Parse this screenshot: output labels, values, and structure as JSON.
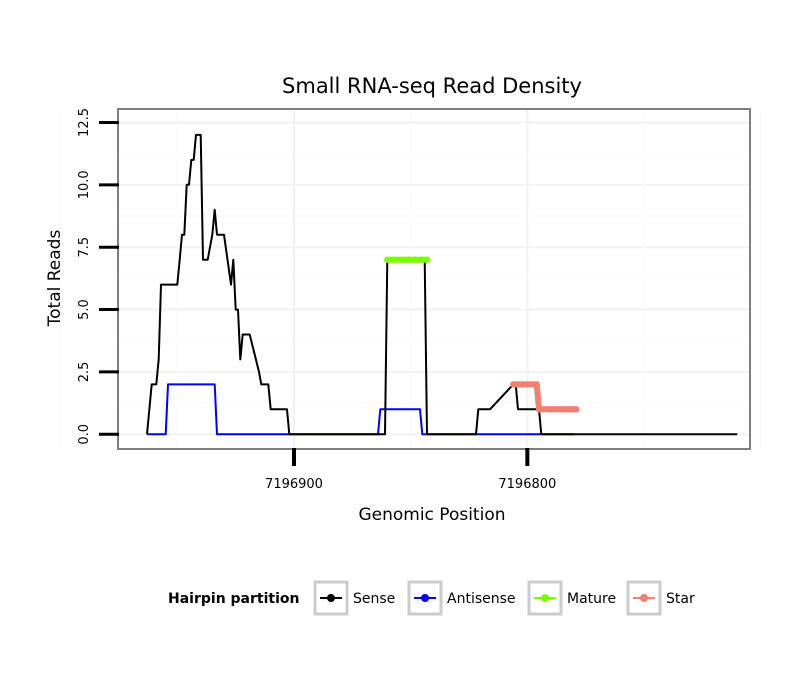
{
  "chart_data": {
    "type": "line",
    "title": "Small RNA-seq Read Density",
    "xlabel": "Genomic Position",
    "ylabel": "Total Reads",
    "x_reversed": true,
    "xlim": [
      7196975,
      7196705
    ],
    "ylim": [
      -0.55,
      13.0
    ],
    "x_ticks": [
      7196900,
      7196800
    ],
    "x_tick_labels": [
      "7196900",
      "7196800"
    ],
    "y_ticks": [
      0,
      2.5,
      5,
      7.5,
      10,
      12.5
    ],
    "y_tick_labels": [
      "0.0",
      "2.5",
      "5.0",
      "7.5",
      "10.0",
      "12.5"
    ],
    "grid": true,
    "legend_title": "Hairpin partition",
    "legend_position": "bottom",
    "series": [
      {
        "name": "Sense",
        "color": "#000000",
        "x": [
          7196963,
          7196961,
          7196959,
          7196958,
          7196957,
          7196956,
          7196950,
          7196949,
          7196948,
          7196947,
          7196946,
          7196945,
          7196944,
          7196943,
          7196942,
          7196941,
          7196940,
          7196939,
          7196938,
          7196937,
          7196935,
          7196934,
          7196933,
          7196932,
          7196931,
          7196930,
          7196927,
          7196926,
          7196925,
          7196924,
          7196923,
          7196922,
          7196920,
          7196919,
          7196915,
          7196914,
          7196912,
          7196911,
          7196910,
          7196904,
          7196903,
          7196902,
          7196896,
          7196895,
          7196870,
          7196861,
          7196860,
          7196844,
          7196843,
          7196824,
          7196822,
          7196821,
          7196817,
          7196816,
          7196806,
          7196805,
          7196804,
          7196795,
          7196794,
          7196793,
          7196778,
          7196777,
          7196776,
          7196765,
          7196760,
          7196755,
          7196750,
          7196745,
          7196740,
          7196735,
          7196725,
          7196720,
          7196715,
          7196710
        ],
        "y": [
          0,
          2,
          2,
          3,
          6,
          6,
          6,
          7,
          8,
          8,
          10,
          10,
          11,
          11,
          12,
          12,
          12,
          7,
          7,
          7,
          8,
          9,
          8,
          8,
          8,
          8,
          6,
          7,
          5,
          5,
          3,
          4,
          4,
          4,
          2.5,
          2,
          2,
          2,
          1,
          1,
          1,
          0,
          0,
          0,
          0,
          0,
          7,
          7,
          0,
          0,
          0,
          1,
          1,
          1,
          2,
          2,
          1,
          1,
          0,
          0,
          0,
          0,
          0,
          0,
          0,
          0,
          0,
          0,
          0,
          0,
          0,
          0,
          0,
          0
        ]
      },
      {
        "name": "Antisense",
        "color": "#0000ff",
        "x": [
          7196963,
          7196955,
          7196954,
          7196934,
          7196933,
          7196864,
          7196863,
          7196846,
          7196845,
          7196810,
          7196795,
          7196780
        ],
        "y": [
          0,
          0,
          2,
          2,
          0,
          0,
          1,
          1,
          0,
          0,
          0,
          0
        ]
      },
      {
        "name": "Mature",
        "color": "#7cfc00",
        "x": [
          7196860,
          7196857,
          7196854,
          7196851,
          7196848,
          7196845,
          7196843
        ],
        "y": [
          7,
          7,
          7,
          7,
          7,
          7,
          7
        ]
      },
      {
        "name": "Star",
        "color": "#f08070",
        "x": [
          7196806,
          7196804,
          7196802,
          7196800,
          7196798,
          7196796,
          7196795,
          7196790,
          7196788,
          7196786,
          7196784,
          7196782,
          7196780,
          7196779
        ],
        "y": [
          2,
          2,
          2,
          2,
          2,
          2,
          1,
          1,
          1,
          1,
          1,
          1,
          1,
          1
        ]
      }
    ]
  }
}
